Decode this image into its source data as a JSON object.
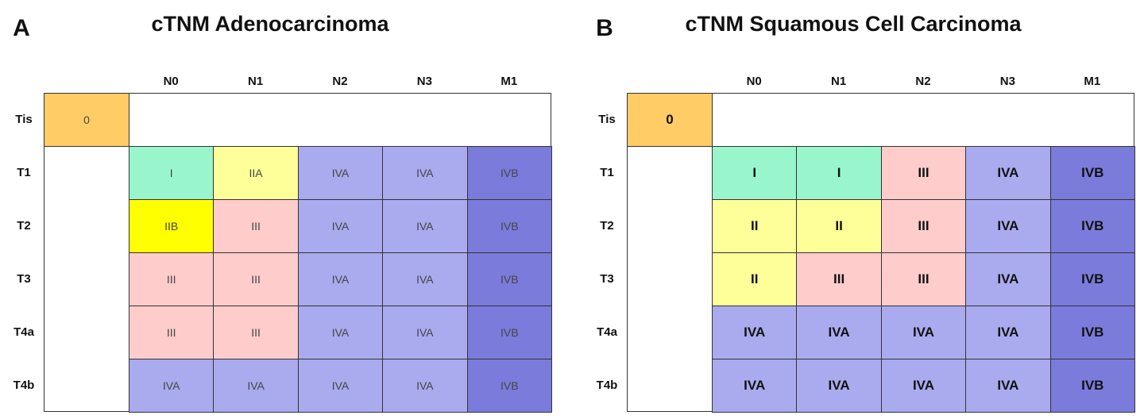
{
  "panels": [
    {
      "letter": "A",
      "title": "cTNM Adenocarcinoma",
      "columns": [
        "N0",
        "N1",
        "N2",
        "N3",
        "M1"
      ],
      "tis": {
        "label": "Tis",
        "text": "0",
        "color": "#ffcc66"
      },
      "rows": [
        {
          "label": "T1",
          "cells": [
            {
              "text": "I",
              "color": "#99f5cc"
            },
            {
              "text": "IIA",
              "color": "#ffff99"
            },
            {
              "text": "IVA",
              "color": "#aaaaee"
            },
            {
              "text": "IVA",
              "color": "#aaaaee"
            },
            {
              "text": "IVB",
              "color": "#7b7bdb"
            }
          ]
        },
        {
          "label": "T2",
          "cells": [
            {
              "text": "IIB",
              "color": "#ffff00"
            },
            {
              "text": "III",
              "color": "#ffcccc"
            },
            {
              "text": "IVA",
              "color": "#aaaaee"
            },
            {
              "text": "IVA",
              "color": "#aaaaee"
            },
            {
              "text": "IVB",
              "color": "#7b7bdb"
            }
          ]
        },
        {
          "label": "T3",
          "cells": [
            {
              "text": "III",
              "color": "#ffcccc"
            },
            {
              "text": "III",
              "color": "#ffcccc"
            },
            {
              "text": "IVA",
              "color": "#aaaaee"
            },
            {
              "text": "IVA",
              "color": "#aaaaee"
            },
            {
              "text": "IVB",
              "color": "#7b7bdb"
            }
          ]
        },
        {
          "label": "T4a",
          "cells": [
            {
              "text": "III",
              "color": "#ffcccc"
            },
            {
              "text": "III",
              "color": "#ffcccc"
            },
            {
              "text": "IVA",
              "color": "#aaaaee"
            },
            {
              "text": "IVA",
              "color": "#aaaaee"
            },
            {
              "text": "IVB",
              "color": "#7b7bdb"
            }
          ]
        },
        {
          "label": "T4b",
          "cells": [
            {
              "text": "IVA",
              "color": "#aaaaee"
            },
            {
              "text": "IVA",
              "color": "#aaaaee"
            },
            {
              "text": "IVA",
              "color": "#aaaaee"
            },
            {
              "text": "IVA",
              "color": "#aaaaee"
            },
            {
              "text": "IVB",
              "color": "#7b7bdb"
            }
          ]
        }
      ]
    },
    {
      "letter": "B",
      "title": "cTNM Squamous Cell Carcinoma",
      "columns": [
        "N0",
        "N1",
        "N2",
        "N3",
        "M1"
      ],
      "tis": {
        "label": "Tis",
        "text": "0",
        "color": "#ffcc66"
      },
      "rows": [
        {
          "label": "T1",
          "cells": [
            {
              "text": "I",
              "color": "#99f5cc"
            },
            {
              "text": "I",
              "color": "#99f5cc"
            },
            {
              "text": "III",
              "color": "#ffcccc"
            },
            {
              "text": "IVA",
              "color": "#aaaaee"
            },
            {
              "text": "IVB",
              "color": "#7b7bdb"
            }
          ]
        },
        {
          "label": "T2",
          "cells": [
            {
              "text": "II",
              "color": "#ffff99"
            },
            {
              "text": "II",
              "color": "#ffff99"
            },
            {
              "text": "III",
              "color": "#ffcccc"
            },
            {
              "text": "IVA",
              "color": "#aaaaee"
            },
            {
              "text": "IVB",
              "color": "#7b7bdb"
            }
          ]
        },
        {
          "label": "T3",
          "cells": [
            {
              "text": "II",
              "color": "#ffff99"
            },
            {
              "text": "III",
              "color": "#ffcccc"
            },
            {
              "text": "III",
              "color": "#ffcccc"
            },
            {
              "text": "IVA",
              "color": "#aaaaee"
            },
            {
              "text": "IVB",
              "color": "#7b7bdb"
            }
          ]
        },
        {
          "label": "T4a",
          "cells": [
            {
              "text": "IVA",
              "color": "#aaaaee"
            },
            {
              "text": "IVA",
              "color": "#aaaaee"
            },
            {
              "text": "IVA",
              "color": "#aaaaee"
            },
            {
              "text": "IVA",
              "color": "#aaaaee"
            },
            {
              "text": "IVB",
              "color": "#7b7bdb"
            }
          ]
        },
        {
          "label": "T4b",
          "cells": [
            {
              "text": "IVA",
              "color": "#aaaaee"
            },
            {
              "text": "IVA",
              "color": "#aaaaee"
            },
            {
              "text": "IVA",
              "color": "#aaaaee"
            },
            {
              "text": "IVA",
              "color": "#aaaaee"
            },
            {
              "text": "IVB",
              "color": "#7b7bdb"
            }
          ]
        }
      ]
    }
  ]
}
